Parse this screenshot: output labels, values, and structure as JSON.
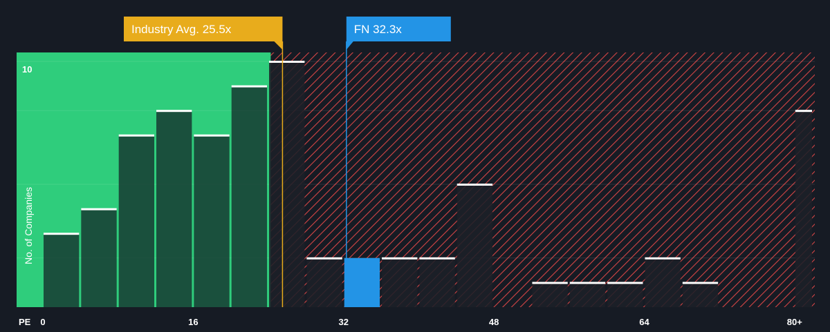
{
  "colors": {
    "background": "#161b24",
    "undervalued_zone": "#2fcd7c",
    "overvalued_hatch": "#d64545",
    "bar_fill": "#1f2b34",
    "bar_top": "#ffffff",
    "highlight_bar": "#2394e6",
    "industry_marker": "#e8ac1c",
    "fn_marker": "#2394e6",
    "axis_text": "#ffffff"
  },
  "axis": {
    "x_label": "PE",
    "y_label": "No. of Companies"
  },
  "markers": {
    "industry_label": "Industry Avg. 25.5x",
    "fn_label": "FN 32.3x"
  },
  "chart_data": {
    "type": "bar",
    "xlabel": "PE",
    "ylabel": "No. of Companies",
    "xlim": [
      0,
      82
    ],
    "ylim": [
      0,
      10
    ],
    "x_ticks": [
      {
        "value": 0,
        "label": "0"
      },
      {
        "value": 16,
        "label": "16"
      },
      {
        "value": 32,
        "label": "32"
      },
      {
        "value": 48,
        "label": "48"
      },
      {
        "value": 64,
        "label": "64"
      },
      {
        "value": 80,
        "label": "80+"
      }
    ],
    "y_ticks": [
      {
        "value": 10,
        "label": "10"
      }
    ],
    "bin_width": 4,
    "bins": [
      {
        "start": 0,
        "value": 3
      },
      {
        "start": 4,
        "value": 4
      },
      {
        "start": 8,
        "value": 7
      },
      {
        "start": 12,
        "value": 8
      },
      {
        "start": 16,
        "value": 7
      },
      {
        "start": 20,
        "value": 9
      },
      {
        "start": 24,
        "value": 10
      },
      {
        "start": 28,
        "value": 2
      },
      {
        "start": 32,
        "value": 2,
        "highlight": true
      },
      {
        "start": 36,
        "value": 2
      },
      {
        "start": 40,
        "value": 2
      },
      {
        "start": 44,
        "value": 5
      },
      {
        "start": 48,
        "value": 0
      },
      {
        "start": 52,
        "value": 1
      },
      {
        "start": 56,
        "value": 1
      },
      {
        "start": 60,
        "value": 1
      },
      {
        "start": 64,
        "value": 2
      },
      {
        "start": 68,
        "value": 1
      },
      {
        "start": 72,
        "value": 0
      },
      {
        "start": 76,
        "value": 0
      },
      {
        "start": 80,
        "value": 8
      }
    ],
    "industry_avg": 25.5,
    "company_value": 32.3,
    "grid": true
  }
}
